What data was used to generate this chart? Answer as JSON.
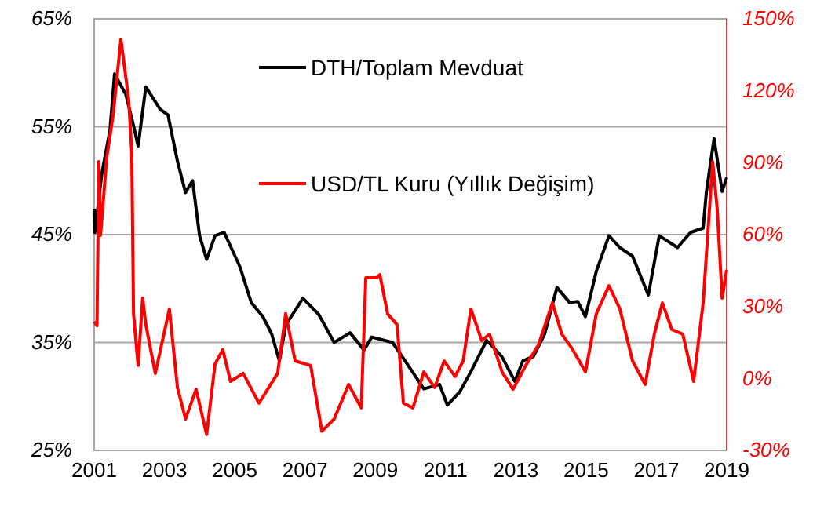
{
  "chart_data": {
    "type": "line",
    "xlim": [
      2001,
      2019
    ],
    "xticks": [
      2001,
      2003,
      2005,
      2007,
      2009,
      2011,
      2013,
      2015,
      2017,
      2019
    ],
    "ylim": [
      25,
      65
    ],
    "yticks": [
      {
        "value": 25,
        "label": "25%"
      },
      {
        "value": 35,
        "label": "35%"
      },
      {
        "value": 45,
        "label": "45%"
      },
      {
        "value": 55,
        "label": "55%"
      },
      {
        "value": 65,
        "label": "65%"
      }
    ],
    "y2lim": [
      -30,
      150
    ],
    "y2ticks": [
      {
        "value": -30,
        "label": "-30%"
      },
      {
        "value": 0,
        "label": "0%"
      },
      {
        "value": 30,
        "label": "30%"
      },
      {
        "value": 60,
        "label": "60%"
      },
      {
        "value": 90,
        "label": "90%"
      },
      {
        "value": 120,
        "label": "120%"
      },
      {
        "value": 150,
        "label": "150%"
      }
    ],
    "grid": "y",
    "legend": "top",
    "series": [
      {
        "name": "DTH/Toplam Mevduat",
        "color": "#000000",
        "x": [
          2001.0,
          2001.02,
          2001.22,
          2001.45,
          2001.58,
          2001.9,
          2002.12,
          2002.25,
          2002.47,
          2002.88,
          2003.1,
          2003.37,
          2003.6,
          2003.8,
          2004.0,
          2004.2,
          2004.44,
          2004.7,
          2005.15,
          2005.47,
          2005.8,
          2006.05,
          2006.27,
          2006.45,
          2006.94,
          2007.39,
          2007.83,
          2008.28,
          2008.68,
          2008.9,
          2009.49,
          2009.93,
          2010.38,
          2010.83,
          2011.05,
          2011.4,
          2011.72,
          2012.17,
          2012.6,
          2012.97,
          2013.2,
          2013.5,
          2013.82,
          2014.17,
          2014.53,
          2014.76,
          2014.98,
          2015.29,
          2015.65,
          2015.96,
          2016.32,
          2016.77,
          2017.08,
          2017.6,
          2017.97,
          2018.33,
          2018.42,
          2018.64,
          2018.87,
          2019.0
        ],
        "values": [
          47.4,
          45.2,
          50.7,
          54.7,
          59.9,
          58.0,
          55.1,
          53.2,
          58.7,
          56.6,
          56.1,
          51.8,
          48.9,
          50.0,
          44.9,
          42.7,
          44.9,
          45.2,
          42.0,
          38.7,
          37.4,
          35.8,
          33.3,
          36.6,
          39.1,
          37.6,
          35.0,
          35.9,
          34.3,
          35.5,
          35.0,
          32.9,
          30.7,
          31.1,
          29.2,
          30.4,
          32.3,
          35.2,
          33.7,
          31.4,
          33.3,
          33.7,
          35.8,
          40.1,
          38.7,
          38.8,
          37.4,
          41.6,
          44.9,
          43.8,
          43.0,
          39.4,
          44.9,
          43.8,
          45.2,
          45.6,
          48.9,
          53.9,
          49.0,
          50.3
        ]
      },
      {
        "name": "USD/TL Kuru (Yıllık Değişim)",
        "color": "#ff0000",
        "axis": "y2",
        "x": [
          2001.0,
          2001.08,
          2001.13,
          2001.18,
          2001.36,
          2001.54,
          2001.76,
          2001.98,
          2002.07,
          2002.12,
          2002.25,
          2002.38,
          2002.47,
          2002.74,
          2003.14,
          2003.37,
          2003.6,
          2003.9,
          2004.2,
          2004.44,
          2004.66,
          2004.88,
          2005.24,
          2005.69,
          2006.22,
          2006.45,
          2006.72,
          2007.16,
          2007.48,
          2007.83,
          2008.24,
          2008.6,
          2008.73,
          2009.04,
          2009.13,
          2009.35,
          2009.62,
          2009.8,
          2010.07,
          2010.38,
          2010.69,
          2010.96,
          2011.27,
          2011.5,
          2011.72,
          2012.03,
          2012.25,
          2012.61,
          2012.92,
          2013.28,
          2013.64,
          2014.04,
          2014.31,
          2014.62,
          2014.98,
          2015.29,
          2015.65,
          2015.96,
          2016.32,
          2016.68,
          2016.94,
          2017.17,
          2017.44,
          2017.75,
          2018.06,
          2018.33,
          2018.6,
          2018.73,
          2018.87,
          2019.0
        ],
        "values": [
          23.7,
          22.0,
          90.4,
          59.7,
          92.4,
          110.0,
          141.5,
          116.6,
          94.4,
          27.0,
          5.4,
          33.5,
          22.4,
          2.1,
          29.0,
          -3.8,
          -16.9,
          -4.5,
          -23.4,
          6.0,
          12.0,
          -1.2,
          2.1,
          -10.3,
          2.1,
          27.0,
          7.3,
          5.4,
          -22.0,
          -16.9,
          -2.5,
          -12.3,
          42.0,
          42.0,
          43.3,
          27.0,
          22.4,
          -10.3,
          -12.3,
          2.7,
          -3.8,
          7.3,
          0.8,
          7.3,
          29.0,
          15.8,
          18.5,
          2.7,
          -4.5,
          5.4,
          13.9,
          31.5,
          18.5,
          12.0,
          2.7,
          27.0,
          38.7,
          29.0,
          7.3,
          -2.5,
          18.5,
          31.5,
          20.4,
          18.5,
          -1.2,
          31.5,
          90.4,
          70.8,
          33.5,
          45.3
        ]
      }
    ]
  }
}
